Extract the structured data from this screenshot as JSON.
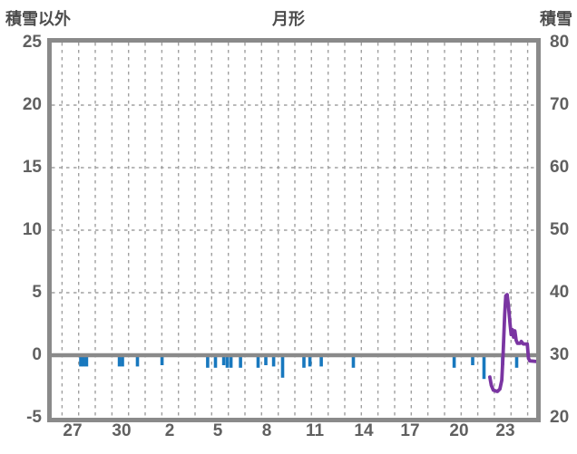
{
  "header": {
    "left_axis_title": "積雪以外",
    "chart_title": "月形",
    "right_axis_title": "積雪"
  },
  "chart_data": {
    "type": "bar+line combo",
    "title": "月形",
    "left_axis": {
      "title": "積雪以外",
      "min": -5,
      "max": 25,
      "ticks": [
        25,
        20,
        15,
        10,
        5,
        0,
        -5
      ]
    },
    "right_axis": {
      "title": "積雪",
      "min": 20,
      "max": 80,
      "ticks": [
        80,
        70,
        60,
        50,
        40,
        30,
        20
      ]
    },
    "x_axis": {
      "labels": [
        "27",
        "30",
        "2",
        "5",
        "8",
        "11",
        "14",
        "17",
        "20",
        "23"
      ],
      "label_days": [
        1.3,
        4.3,
        7.3,
        10.3,
        13.3,
        16.3,
        19.3,
        22.2,
        25.2,
        28.1
      ],
      "span_days": 30,
      "grid": {
        "first_day": 0.64,
        "step_days": 1.0297,
        "count": 29
      }
    },
    "h_gridline_left_values": [
      20,
      15,
      10,
      5
    ],
    "zero_line_left_value": 0,
    "grid_on": true,
    "legend": "none",
    "series": [
      {
        "name": "積雪以外",
        "type": "bar",
        "axis": "left",
        "color": "#1878be",
        "points": [
          {
            "day": 1.8,
            "value": -0.9
          },
          {
            "day": 1.97,
            "value": -0.9
          },
          {
            "day": 2.16,
            "value": -0.9
          },
          {
            "day": 4.19,
            "value": -0.9
          },
          {
            "day": 4.38,
            "value": -0.9
          },
          {
            "day": 5.31,
            "value": -0.9
          },
          {
            "day": 6.83,
            "value": -0.8
          },
          {
            "day": 9.66,
            "value": -1.0
          },
          {
            "day": 10.14,
            "value": -1.0
          },
          {
            "day": 10.65,
            "value": -0.8
          },
          {
            "day": 10.87,
            "value": -1.0
          },
          {
            "day": 11.1,
            "value": -1.0
          },
          {
            "day": 11.69,
            "value": -1.0
          },
          {
            "day": 12.78,
            "value": -1.0
          },
          {
            "day": 13.26,
            "value": -0.8
          },
          {
            "day": 13.74,
            "value": -0.9
          },
          {
            "day": 14.3,
            "value": -1.8
          },
          {
            "day": 15.62,
            "value": -1.0
          },
          {
            "day": 15.99,
            "value": -0.9
          },
          {
            "day": 16.69,
            "value": -0.9
          },
          {
            "day": 18.68,
            "value": -1.0
          },
          {
            "day": 24.92,
            "value": -1.0
          },
          {
            "day": 26.07,
            "value": -0.8
          },
          {
            "day": 26.77,
            "value": -1.9
          },
          {
            "day": 27.92,
            "value": -0.8
          },
          {
            "day": 28.79,
            "value": -1.0
          }
        ]
      },
      {
        "name": "積雪",
        "type": "line",
        "axis": "right",
        "color": "#7a35a2",
        "points": [
          {
            "day": 27.13,
            "value": 26.5
          },
          {
            "day": 27.22,
            "value": 25.2
          },
          {
            "day": 27.35,
            "value": 24.4
          },
          {
            "day": 27.6,
            "value": 24.2
          },
          {
            "day": 27.75,
            "value": 24.6
          },
          {
            "day": 27.87,
            "value": 26.0
          },
          {
            "day": 27.95,
            "value": 30.0
          },
          {
            "day": 28.05,
            "value": 36.5
          },
          {
            "day": 28.12,
            "value": 39.5
          },
          {
            "day": 28.2,
            "value": 39.7
          },
          {
            "day": 28.28,
            "value": 38.0
          },
          {
            "day": 28.38,
            "value": 35.0
          },
          {
            "day": 28.45,
            "value": 33.3
          },
          {
            "day": 28.52,
            "value": 34.1
          },
          {
            "day": 28.6,
            "value": 32.9
          },
          {
            "day": 28.68,
            "value": 33.9
          },
          {
            "day": 28.76,
            "value": 32.4
          },
          {
            "day": 28.85,
            "value": 31.9
          },
          {
            "day": 29.0,
            "value": 31.9
          },
          {
            "day": 29.08,
            "value": 32.2
          },
          {
            "day": 29.2,
            "value": 31.8
          },
          {
            "day": 29.45,
            "value": 31.8
          },
          {
            "day": 29.52,
            "value": 29.5
          },
          {
            "day": 29.6,
            "value": 29.1
          },
          {
            "day": 30.0,
            "value": 29.0
          }
        ]
      }
    ],
    "colors": {
      "frame": "#8a8a8a",
      "zero_line": "#8a8a8a",
      "grid": "#a0a0a0",
      "bar": "#1878be",
      "line": "#7a35a2",
      "label_text": "#606060",
      "title_text": "#4d4d4d"
    }
  }
}
